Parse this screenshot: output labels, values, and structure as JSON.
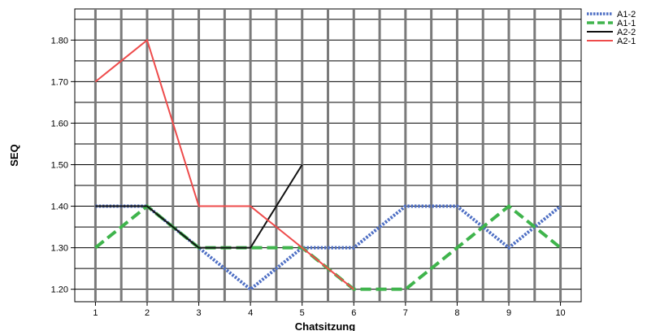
{
  "chart_data": {
    "type": "line",
    "title": "",
    "xlabel": "Chatsitzung",
    "ylabel": "SEQ",
    "x": [
      1,
      2,
      3,
      4,
      5,
      6,
      7,
      8,
      9,
      10
    ],
    "xlim": [
      0.6,
      10.4
    ],
    "ylim": [
      1.17,
      1.875
    ],
    "y_ticks": [
      1.2,
      1.3,
      1.4,
      1.5,
      1.6,
      1.7,
      1.8
    ],
    "y_tick_labels": [
      "1.20",
      "1.30",
      "1.40",
      "1.50",
      "1.60",
      "1.70",
      "1.80"
    ],
    "grid": true,
    "legend_position": "top-right",
    "series": [
      {
        "name": "A1-2",
        "color": "#4e6fc4",
        "style": "dotted",
        "values": [
          1.4,
          1.4,
          1.3,
          1.2,
          1.3,
          1.3,
          1.4,
          1.4,
          1.3,
          1.4
        ]
      },
      {
        "name": "A1-1",
        "color": "#3fb44c",
        "style": "dashed",
        "values": [
          1.3,
          1.4,
          1.3,
          1.3,
          1.3,
          1.2,
          1.2,
          1.3,
          1.4,
          1.3
        ]
      },
      {
        "name": "A2-2",
        "color": "#111111",
        "style": "solid",
        "values": [
          1.4,
          1.4,
          1.3,
          1.3,
          1.5,
          null,
          null,
          null,
          null,
          null
        ]
      },
      {
        "name": "A2-1",
        "color": "#ee4b4b",
        "style": "solid",
        "values": [
          1.7,
          1.8,
          1.4,
          1.4,
          1.3,
          1.2,
          null,
          null,
          null,
          null
        ]
      }
    ]
  }
}
